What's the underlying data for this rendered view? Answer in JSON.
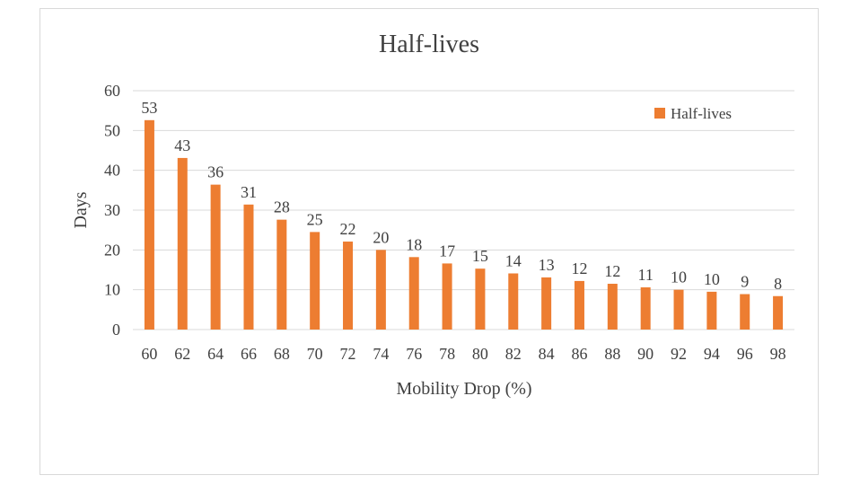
{
  "chart_data": {
    "type": "bar",
    "title": "Half-lives",
    "xlabel": "Mobility Drop (%)",
    "ylabel": "Days",
    "ylim": [
      0,
      60
    ],
    "yticks": [
      0,
      10,
      20,
      30,
      40,
      50,
      60
    ],
    "grid": true,
    "legend_position": "top-right",
    "categories": [
      "60",
      "62",
      "64",
      "66",
      "68",
      "70",
      "72",
      "74",
      "76",
      "78",
      "80",
      "82",
      "84",
      "86",
      "88",
      "90",
      "92",
      "94",
      "96",
      "98"
    ],
    "series": [
      {
        "name": "Half-lives",
        "values": [
          52.6,
          43.1,
          36.4,
          31.4,
          27.6,
          24.5,
          22.1,
          20.0,
          18.2,
          16.6,
          15.3,
          14.1,
          13.1,
          12.2,
          11.5,
          10.6,
          10.0,
          9.5,
          8.9,
          8.4
        ],
        "data_labels": [
          "53",
          "43",
          "36",
          "31",
          "28",
          "25",
          "22",
          "20",
          "18",
          "17",
          "15",
          "14",
          "13",
          "12",
          "12",
          "11",
          "10",
          "10",
          "9",
          "8"
        ],
        "color": "#ed7d31"
      }
    ]
  }
}
